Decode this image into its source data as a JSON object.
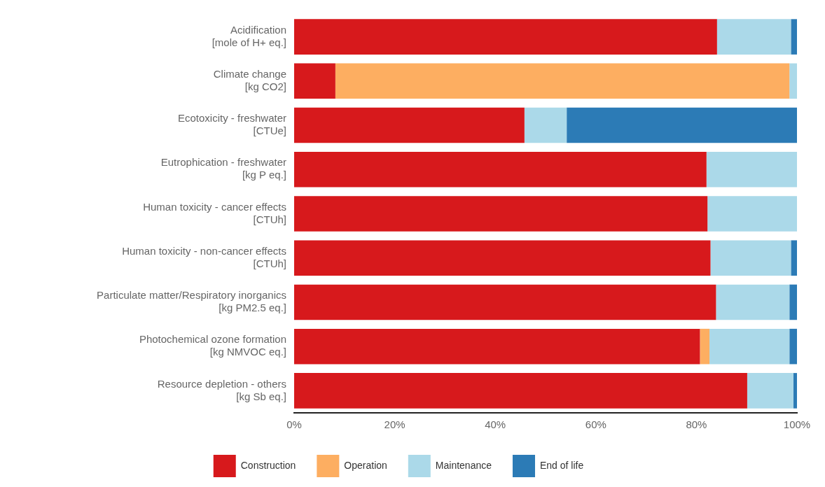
{
  "chart_data": {
    "type": "bar",
    "orientation": "horizontal",
    "stacked": true,
    "categories": [
      "Acidification\n[mole of H+ eq.]",
      "Climate change\n[kg CO2]",
      "Ecotoxicity - freshwater\n[CTUe]",
      "Eutrophication - freshwater\n[kg P eq.]",
      "Human toxicity - cancer effects\n[CTUh]",
      "Human toxicity - non-cancer effects\n[CTUh]",
      "Particulate matter/Respiratory inorganics\n[kg PM2.5 eq.]",
      "Photochemical ozone formation\n[kg NMVOC eq.]",
      "Resource depletion - others\n[kg Sb eq.]"
    ],
    "series": [
      {
        "name": "Construction",
        "color": "#d7191c",
        "values": [
          84.1,
          8.2,
          45.8,
          82.0,
          82.2,
          82.8,
          83.9,
          80.7,
          90.1
        ]
      },
      {
        "name": "Operation",
        "color": "#fdae61",
        "values": [
          null,
          90.3,
          null,
          null,
          null,
          null,
          null,
          1.9,
          null
        ]
      },
      {
        "name": "Maintenance",
        "color": "#abd9e9",
        "values": [
          14.7,
          1.5,
          8.4,
          18.0,
          17.8,
          16.0,
          14.6,
          15.9,
          9.2
        ]
      },
      {
        "name": "End of life",
        "color": "#2c7bb6",
        "values": [
          1.2,
          null,
          45.8,
          null,
          null,
          1.2,
          1.5,
          1.5,
          0.7
        ]
      }
    ],
    "xlim": [
      0,
      100
    ],
    "xticks": [
      {
        "value": 0,
        "label": "0%"
      },
      {
        "value": 20,
        "label": "20%"
      },
      {
        "value": 40,
        "label": "40%"
      },
      {
        "value": 60,
        "label": "60%"
      },
      {
        "value": 80,
        "label": "80%"
      },
      {
        "value": 100,
        "label": "100%"
      }
    ],
    "grid": false,
    "legend": "bottom"
  }
}
